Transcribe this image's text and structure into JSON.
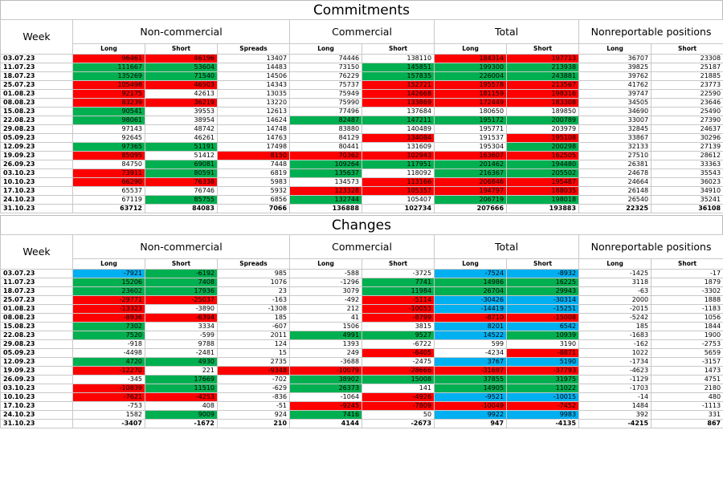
{
  "commitments": {
    "title": "Commitments",
    "header": {
      "week": "Week",
      "groups": [
        "Non-commercial",
        "Commercial",
        "Total",
        "Nonreportable positions"
      ],
      "sub": [
        "Long",
        "Short",
        "Spreads",
        "Long",
        "Short",
        "Long",
        "Short",
        "Long",
        "Short"
      ]
    },
    "rows": [
      {
        "week": "03.07.23",
        "v": [
          "96461",
          "46196",
          "13407",
          "74446",
          "138110",
          "184314",
          "197713",
          "36707",
          "23308"
        ],
        "c": [
          "r",
          "r",
          "",
          "",
          "",
          "r",
          "r",
          "",
          ""
        ]
      },
      {
        "week": "11.07.23",
        "v": [
          "111667",
          "53604",
          "14483",
          "73150",
          "145851",
          "199300",
          "213938",
          "39825",
          "25187"
        ],
        "c": [
          "g",
          "g",
          "",
          "",
          "g",
          "g",
          "g",
          "",
          ""
        ]
      },
      {
        "week": "18.07.23",
        "v": [
          "135269",
          "71540",
          "14506",
          "76229",
          "157835",
          "226004",
          "243881",
          "39762",
          "21885"
        ],
        "c": [
          "g",
          "g",
          "",
          "",
          "g",
          "g",
          "g",
          "",
          ""
        ]
      },
      {
        "week": "25.07.23",
        "v": [
          "105498",
          "46503",
          "14343",
          "75737",
          "152721",
          "195578",
          "213567",
          "41762",
          "23773"
        ],
        "c": [
          "r",
          "r",
          "",
          "",
          "r",
          "r",
          "r",
          "",
          ""
        ]
      },
      {
        "week": "01.08.23",
        "v": [
          "92175",
          "42613",
          "13035",
          "75949",
          "142668",
          "181159",
          "198316",
          "39747",
          "22590"
        ],
        "c": [
          "r",
          "",
          "",
          "",
          "r",
          "r",
          "r",
          "",
          ""
        ]
      },
      {
        "week": "08.08.23",
        "v": [
          "83239",
          "36219",
          "13220",
          "75990",
          "133869",
          "172449",
          "183308",
          "34505",
          "23646"
        ],
        "c": [
          "r",
          "r",
          "",
          "",
          "r",
          "r",
          "r",
          "",
          ""
        ]
      },
      {
        "week": "15.08.23",
        "v": [
          "90541",
          "39553",
          "12613",
          "77496",
          "137684",
          "180650",
          "189850",
          "34690",
          "25490"
        ],
        "c": [
          "g",
          "",
          "",
          "",
          "",
          "",
          "",
          "",
          ""
        ]
      },
      {
        "week": "22.08.23",
        "v": [
          "98061",
          "38954",
          "14624",
          "82487",
          "147211",
          "195172",
          "200789",
          "33007",
          "27390"
        ],
        "c": [
          "g",
          "",
          "",
          "g",
          "g",
          "g",
          "g",
          "",
          ""
        ]
      },
      {
        "week": "29.08.23",
        "v": [
          "97143",
          "48742",
          "14748",
          "83880",
          "140489",
          "195771",
          "203979",
          "32845",
          "24637"
        ],
        "c": [
          "",
          "",
          "",
          "",
          "",
          "",
          "",
          "",
          ""
        ]
      },
      {
        "week": "05.09.23",
        "v": [
          "92645",
          "46261",
          "14763",
          "84129",
          "134084",
          "191537",
          "195108",
          "33867",
          "30296"
        ],
        "c": [
          "",
          "",
          "",
          "",
          "r",
          "",
          "r",
          "",
          ""
        ]
      },
      {
        "week": "12.09.23",
        "v": [
          "97365",
          "51191",
          "17498",
          "80441",
          "131609",
          "195304",
          "200298",
          "32133",
          "27139"
        ],
        "c": [
          "g",
          "g",
          "",
          "",
          "",
          "",
          "g",
          "",
          ""
        ]
      },
      {
        "week": "19.09.23",
        "v": [
          "85095",
          "51412",
          "8150",
          "70362",
          "102943",
          "163607",
          "162505",
          "27510",
          "28612"
        ],
        "c": [
          "r",
          "",
          "r",
          "r",
          "r",
          "r",
          "r",
          "",
          ""
        ]
      },
      {
        "week": "26.09.23",
        "v": [
          "84750",
          "69081",
          "7448",
          "109264",
          "117951",
          "201462",
          "194480",
          "26381",
          "33363"
        ],
        "c": [
          "",
          "g",
          "",
          "g",
          "g",
          "g",
          "g",
          "",
          ""
        ]
      },
      {
        "week": "03.10.23",
        "v": [
          "73911",
          "80591",
          "6819",
          "135637",
          "118092",
          "216367",
          "205502",
          "24678",
          "35543"
        ],
        "c": [
          "r",
          "g",
          "",
          "g",
          "",
          "g",
          "g",
          "",
          ""
        ]
      },
      {
        "week": "10.10.23",
        "v": [
          "66290",
          "76338",
          "5983",
          "134573",
          "113166",
          "206846",
          "195487",
          "24664",
          "36023"
        ],
        "c": [
          "r",
          "r",
          "",
          "",
          "r",
          "r",
          "r",
          "",
          ""
        ]
      },
      {
        "week": "17.10.23",
        "v": [
          "65537",
          "76746",
          "5932",
          "123328",
          "105357",
          "194797",
          "188035",
          "26148",
          "34910"
        ],
        "c": [
          "",
          "",
          "",
          "r",
          "r",
          "r",
          "r",
          "",
          ""
        ]
      },
      {
        "week": "24.10.23",
        "v": [
          "67119",
          "85755",
          "6856",
          "132744",
          "105407",
          "206719",
          "198018",
          "26540",
          "35241"
        ],
        "c": [
          "",
          "g",
          "",
          "g",
          "",
          "g",
          "g",
          "",
          ""
        ]
      },
      {
        "week": "31.10.23",
        "v": [
          "63712",
          "84083",
          "7066",
          "136888",
          "102734",
          "207666",
          "193883",
          "22325",
          "36108"
        ],
        "c": [
          "",
          "",
          "",
          "",
          "",
          "",
          "",
          "",
          ""
        ]
      }
    ]
  },
  "changes": {
    "title": "Changes",
    "header": {
      "week": "Week",
      "groups": [
        "Non-commercial",
        "Commercial",
        "Total",
        "Nonreportable positions"
      ],
      "sub": [
        "Long",
        "Short",
        "Spreads",
        "Long",
        "Short",
        "Long",
        "Short",
        "Long",
        "Short"
      ]
    },
    "rows": [
      {
        "week": "03.07.23",
        "v": [
          "-7921",
          "-6192",
          "985",
          "-588",
          "-3725",
          "-7524",
          "-8932",
          "-1425",
          "-17"
        ],
        "c": [
          "b",
          "g",
          "",
          "",
          "",
          "b",
          "b",
          "",
          ""
        ]
      },
      {
        "week": "11.07.23",
        "v": [
          "15206",
          "7408",
          "1076",
          "-1296",
          "7741",
          "14986",
          "16225",
          "3118",
          "1879"
        ],
        "c": [
          "g",
          "g",
          "",
          "",
          "g",
          "g",
          "g",
          "",
          ""
        ]
      },
      {
        "week": "18.07.23",
        "v": [
          "23602",
          "17936",
          "23",
          "3079",
          "11984",
          "26704",
          "29943",
          "-63",
          "-3302"
        ],
        "c": [
          "g",
          "g",
          "",
          "",
          "g",
          "g",
          "g",
          "",
          ""
        ]
      },
      {
        "week": "25.07.23",
        "v": [
          "-29771",
          "-25037",
          "-163",
          "-492",
          "-5114",
          "-30426",
          "-30314",
          "2000",
          "1888"
        ],
        "c": [
          "r",
          "r",
          "",
          "",
          "r",
          "b",
          "b",
          "",
          ""
        ]
      },
      {
        "week": "01.08.23",
        "v": [
          "-13323",
          "-3890",
          "-1308",
          "212",
          "-10053",
          "-14419",
          "-15251",
          "-2015",
          "-1183"
        ],
        "c": [
          "r",
          "",
          "",
          "",
          "r",
          "b",
          "b",
          "",
          ""
        ]
      },
      {
        "week": "08.08.23",
        "v": [
          "-8936",
          "-6394",
          "185",
          "41",
          "-8799",
          "-8710",
          "-15008",
          "-5242",
          "1056"
        ],
        "c": [
          "r",
          "r",
          "",
          "",
          "r",
          "r",
          "r",
          "",
          ""
        ]
      },
      {
        "week": "15.08.23",
        "v": [
          "7302",
          "3334",
          "-607",
          "1506",
          "3815",
          "8201",
          "6542",
          "185",
          "1844"
        ],
        "c": [
          "g",
          "",
          "",
          "",
          "",
          "b",
          "b",
          "",
          ""
        ]
      },
      {
        "week": "22.08.23",
        "v": [
          "7520",
          "-599",
          "2011",
          "4991",
          "9527",
          "14522",
          "10939",
          "-1683",
          "1900"
        ],
        "c": [
          "g",
          "",
          "",
          "g",
          "g",
          "b",
          "g",
          "",
          ""
        ]
      },
      {
        "week": "29.08.23",
        "v": [
          "-918",
          "9788",
          "124",
          "1393",
          "-6722",
          "599",
          "3190",
          "-162",
          "-2753"
        ],
        "c": [
          "",
          "",
          "",
          "",
          "",
          "",
          "",
          "",
          ""
        ]
      },
      {
        "week": "05.09.23",
        "v": [
          "-4498",
          "-2481",
          "15",
          "249",
          "-6405",
          "-4234",
          "-8871",
          "1022",
          "5659"
        ],
        "c": [
          "",
          "",
          "",
          "",
          "r",
          "",
          "r",
          "",
          ""
        ]
      },
      {
        "week": "12.09.23",
        "v": [
          "4720",
          "4930",
          "2735",
          "-3688",
          "-2475",
          "3767",
          "5190",
          "-1734",
          "-3157"
        ],
        "c": [
          "g",
          "g",
          "",
          "",
          "",
          "b",
          "b",
          "",
          ""
        ]
      },
      {
        "week": "19.09.23",
        "v": [
          "-12270",
          "221",
          "-9348",
          "-10079",
          "-28666",
          "-31697",
          "-37793",
          "-4623",
          "1473"
        ],
        "c": [
          "r",
          "",
          "r",
          "r",
          "r",
          "r",
          "r",
          "",
          ""
        ]
      },
      {
        "week": "26.09.23",
        "v": [
          "-345",
          "17669",
          "-702",
          "38902",
          "15008",
          "37855",
          "31975",
          "-1129",
          "4751"
        ],
        "c": [
          "",
          "g",
          "",
          "g",
          "g",
          "g",
          "g",
          "",
          ""
        ]
      },
      {
        "week": "03.10.23",
        "v": [
          "-10839",
          "11510",
          "-629",
          "26373",
          "141",
          "14905",
          "11022",
          "-1703",
          "2180"
        ],
        "c": [
          "r",
          "g",
          "",
          "g",
          "",
          "g",
          "g",
          "",
          ""
        ]
      },
      {
        "week": "10.10.23",
        "v": [
          "-7621",
          "-4253",
          "-836",
          "-1064",
          "-4926",
          "-9521",
          "-10015",
          "-14",
          "480"
        ],
        "c": [
          "r",
          "r",
          "",
          "",
          "r",
          "b",
          "b",
          "",
          ""
        ]
      },
      {
        "week": "17.10.23",
        "v": [
          "-753",
          "408",
          "-51",
          "-9245",
          "-7809",
          "-10049",
          "-7452",
          "1484",
          "-1113"
        ],
        "c": [
          "",
          "",
          "",
          "r",
          "r",
          "r",
          "r",
          "",
          ""
        ]
      },
      {
        "week": "24.10.23",
        "v": [
          "1582",
          "9009",
          "924",
          "7416",
          "50",
          "9922",
          "9983",
          "392",
          "331"
        ],
        "c": [
          "",
          "g",
          "",
          "g",
          "",
          "b",
          "b",
          "",
          ""
        ]
      },
      {
        "week": "31.10.23",
        "v": [
          "-3407",
          "-1672",
          "210",
          "4144",
          "-2673",
          "947",
          "-4135",
          "-4215",
          "867"
        ],
        "c": [
          "",
          "",
          "",
          "",
          "",
          "",
          "",
          "",
          ""
        ]
      }
    ]
  }
}
